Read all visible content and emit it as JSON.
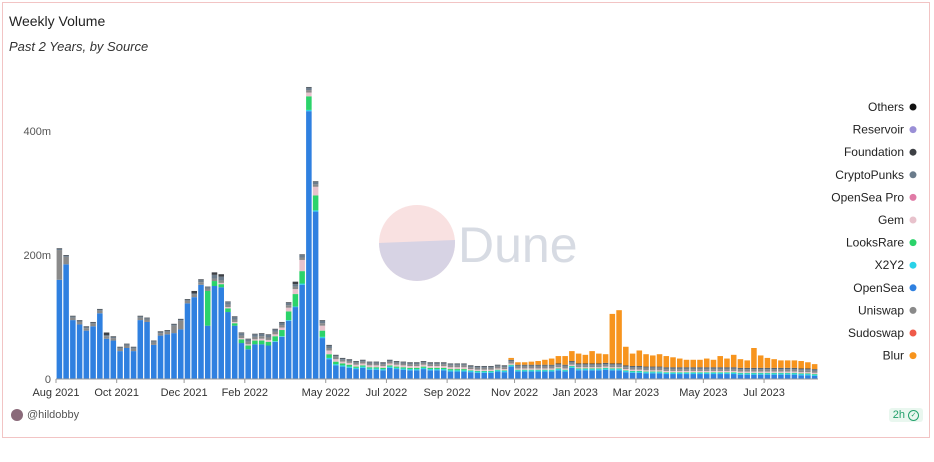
{
  "header": {
    "title": "Weekly Volume",
    "subtitle": "Past 2 Years, by Source"
  },
  "watermark": {
    "text": "Dune"
  },
  "footer": {
    "user": "@hildobby",
    "refresh": "2h"
  },
  "colors": {
    "Others": "#111111",
    "Reservoir": "#9a8fd6",
    "Foundation": "#3d4045",
    "CryptoPunks": "#6b7c8c",
    "OpenSea Pro": "#e07aa6",
    "Gem": "#e8c2cc",
    "LooksRare": "#2bd36a",
    "X2Y2": "#2ad2e8",
    "OpenSea": "#2f80e0",
    "Uniswap": "#8a8a8a",
    "Sudoswap": "#ef5a4a",
    "Blur": "#f7941d"
  },
  "chart_data": {
    "type": "bar",
    "stacked": true,
    "title": "Weekly Volume",
    "subtitle": "Past 2 Years, by Source",
    "ylim": [
      0,
      500
    ],
    "y_ticks": [
      0,
      200,
      400
    ],
    "y_tick_labels": [
      "0",
      "200m",
      "400m"
    ],
    "x_tick_labels": [
      "Aug 2021",
      "Oct 2021",
      "Dec 2021",
      "Feb 2022",
      "May 2022",
      "Jul 2022",
      "Sep 2022",
      "Nov 2022",
      "Jan 2023",
      "Mar 2023",
      "May 2023",
      "Jul 2023"
    ],
    "x_tick_weeks": [
      0,
      9,
      19,
      28,
      40,
      49,
      58,
      68,
      77,
      86,
      96,
      105
    ],
    "legend_position": "right",
    "grid": false,
    "legend": [
      "Others",
      "Reservoir",
      "Foundation",
      "CryptoPunks",
      "OpenSea Pro",
      "Gem",
      "LooksRare",
      "X2Y2",
      "OpenSea",
      "Uniswap",
      "Sudoswap",
      "Blur"
    ],
    "series": [
      {
        "name": "OpenSea",
        "values": [
          160,
          185,
          95,
          88,
          78,
          85,
          106,
          65,
          62,
          45,
          50,
          45,
          95,
          92,
          55,
          70,
          72,
          74,
          80,
          122,
          132,
          152,
          86,
          150,
          148,
          108,
          86,
          58,
          48,
          56,
          56,
          54,
          60,
          68,
          94,
          116,
          152,
          432,
          270,
          66,
          32,
          22,
          20,
          18,
          16,
          18,
          15,
          15,
          14,
          18,
          16,
          15,
          14,
          14,
          16,
          14,
          14,
          14,
          12,
          12,
          12,
          11,
          10,
          10,
          10,
          12,
          11,
          20,
          12,
          12,
          12,
          12,
          12,
          12,
          14,
          12,
          18,
          14,
          14,
          14,
          14,
          15,
          14,
          14,
          11,
          10,
          10,
          9,
          9,
          9,
          8,
          8,
          8,
          8,
          8,
          8,
          8,
          8,
          8,
          8,
          8,
          7,
          7,
          7,
          7,
          7,
          7,
          7,
          7,
          7,
          6,
          6,
          5
        ]
      },
      {
        "name": "X2Y2",
        "values": [
          0,
          0,
          0,
          0,
          0,
          0,
          0,
          0,
          0,
          0,
          0,
          0,
          0,
          0,
          0,
          0,
          0,
          0,
          0,
          0,
          0,
          0,
          0,
          0,
          0,
          0,
          0,
          0,
          0,
          0,
          0,
          0,
          1,
          1,
          1,
          1,
          2,
          2,
          2,
          2,
          2,
          2,
          2,
          2,
          2,
          2,
          2,
          2,
          2,
          2,
          2,
          2,
          2,
          2,
          2,
          2,
          2,
          2,
          2,
          2,
          2,
          2,
          2,
          2,
          2,
          2,
          2,
          2,
          2,
          2,
          2,
          2,
          2,
          2,
          2,
          2,
          2,
          2,
          2,
          2,
          2,
          2,
          2,
          2,
          2,
          2,
          2,
          2,
          2,
          2,
          2,
          2,
          2,
          2,
          2,
          2,
          2,
          2,
          2,
          2,
          2,
          2,
          2,
          2,
          2,
          2,
          2,
          2,
          2,
          2,
          2,
          2,
          2
        ]
      },
      {
        "name": "LooksRare",
        "values": [
          0,
          0,
          0,
          0,
          0,
          0,
          0,
          0,
          0,
          0,
          0,
          0,
          0,
          0,
          0,
          0,
          0,
          0,
          0,
          0,
          0,
          0,
          56,
          8,
          5,
          6,
          4,
          6,
          6,
          6,
          6,
          6,
          8,
          10,
          14,
          20,
          20,
          22,
          24,
          10,
          6,
          4,
          3,
          3,
          2,
          2,
          2,
          2,
          2,
          2,
          2,
          2,
          2,
          2,
          2,
          2,
          2,
          2,
          2,
          2,
          2,
          1,
          1,
          1,
          1,
          1,
          1,
          1,
          1,
          1,
          1,
          1,
          1,
          1,
          1,
          1,
          1,
          1,
          1,
          1,
          1,
          1,
          1,
          1,
          1,
          1,
          1,
          1,
          1,
          1,
          1,
          1,
          1,
          1,
          1,
          1,
          1,
          1,
          1,
          1,
          1,
          1,
          1,
          1,
          1,
          1,
          1,
          1,
          1,
          1,
          1,
          1,
          1
        ]
      },
      {
        "name": "Gem",
        "values": [
          0,
          0,
          0,
          0,
          0,
          0,
          0,
          0,
          0,
          0,
          0,
          0,
          0,
          0,
          0,
          0,
          0,
          0,
          0,
          0,
          0,
          0,
          0,
          0,
          2,
          2,
          2,
          2,
          2,
          2,
          3,
          3,
          3,
          4,
          6,
          8,
          18,
          6,
          14,
          8,
          6,
          4,
          3,
          3,
          3,
          3,
          3,
          3,
          3,
          3,
          3,
          3,
          3,
          3,
          3,
          3,
          3,
          3,
          3,
          3,
          3,
          2,
          2,
          2,
          2,
          2,
          2,
          2,
          2,
          2,
          2,
          2,
          2,
          2,
          2,
          2,
          2,
          2,
          2,
          2,
          2,
          2,
          2,
          2,
          2,
          2,
          2,
          2,
          2,
          2,
          2,
          2,
          2,
          2,
          2,
          2,
          2,
          2,
          2,
          2,
          2,
          2,
          2,
          2,
          2,
          2,
          2,
          2,
          2,
          2,
          2,
          2,
          2
        ]
      },
      {
        "name": "Uniswap",
        "values": [
          48,
          12,
          4,
          4,
          4,
          4,
          4,
          4,
          4,
          4,
          4,
          4,
          4,
          4,
          4,
          4,
          4,
          12,
          14,
          4,
          4,
          4,
          4,
          4,
          4,
          4,
          4,
          4,
          4,
          4,
          4,
          4,
          4,
          4,
          4,
          4,
          4,
          4,
          4,
          4,
          4,
          4,
          3,
          3,
          3,
          3,
          3,
          3,
          3,
          3,
          3,
          3,
          3,
          3,
          3,
          3,
          3,
          3,
          3,
          3,
          3,
          3,
          3,
          3,
          3,
          3,
          3,
          3,
          3,
          3,
          3,
          3,
          3,
          3,
          3,
          3,
          3,
          3,
          3,
          3,
          3,
          3,
          3,
          3,
          3,
          3,
          3,
          3,
          3,
          3,
          3,
          3,
          3,
          3,
          3,
          3,
          3,
          3,
          3,
          3,
          3,
          3,
          3,
          3,
          3,
          3,
          3,
          3,
          3,
          3,
          3,
          3,
          3
        ]
      },
      {
        "name": "CryptoPunks",
        "values": [
          2,
          2,
          2,
          2,
          2,
          2,
          2,
          2,
          2,
          2,
          2,
          2,
          2,
          2,
          2,
          2,
          2,
          2,
          2,
          2,
          2,
          4,
          2,
          6,
          6,
          4,
          4,
          4,
          4,
          4,
          4,
          4,
          4,
          4,
          4,
          4,
          4,
          4,
          4,
          4,
          4,
          2,
          2,
          2,
          2,
          2,
          2,
          2,
          2,
          2,
          2,
          2,
          2,
          2,
          2,
          2,
          2,
          2,
          2,
          2,
          2,
          2,
          2,
          2,
          2,
          2,
          2,
          2,
          2,
          2,
          2,
          2,
          2,
          2,
          2,
          2,
          2,
          2,
          2,
          2,
          2,
          2,
          2,
          2,
          2,
          2,
          2,
          2,
          2,
          2,
          2,
          2,
          2,
          2,
          2,
          2,
          2,
          2,
          2,
          2,
          2,
          2,
          2,
          2,
          2,
          2,
          2,
          2,
          2,
          2,
          2,
          2,
          2
        ]
      },
      {
        "name": "Foundation",
        "values": [
          1,
          1,
          1,
          1,
          1,
          1,
          1,
          4,
          1,
          1,
          1,
          1,
          1,
          1,
          1,
          1,
          1,
          1,
          1,
          1,
          4,
          1,
          1,
          4,
          4,
          1,
          1,
          1,
          1,
          1,
          1,
          1,
          1,
          1,
          1,
          4,
          1,
          1,
          1,
          1,
          1,
          1,
          1,
          1,
          1,
          1,
          1,
          1,
          1,
          1,
          1,
          1,
          1,
          1,
          1,
          1,
          1,
          1,
          1,
          1,
          1,
          1,
          1,
          1,
          1,
          1,
          1,
          1,
          1,
          1,
          1,
          1,
          1,
          1,
          1,
          1,
          1,
          1,
          1,
          1,
          1,
          1,
          1,
          1,
          1,
          1,
          1,
          1,
          1,
          1,
          1,
          1,
          1,
          1,
          1,
          1,
          1,
          1,
          1,
          1,
          1,
          1,
          1,
          1,
          1,
          1,
          1,
          1,
          1,
          1,
          1,
          1,
          1
        ]
      },
      {
        "name": "Blur",
        "values": [
          0,
          0,
          0,
          0,
          0,
          0,
          0,
          0,
          0,
          0,
          0,
          0,
          0,
          0,
          0,
          0,
          0,
          0,
          0,
          0,
          0,
          0,
          0,
          0,
          0,
          0,
          0,
          0,
          0,
          0,
          0,
          0,
          0,
          0,
          0,
          0,
          0,
          0,
          0,
          0,
          0,
          0,
          0,
          0,
          0,
          0,
          0,
          0,
          0,
          0,
          0,
          0,
          0,
          0,
          0,
          0,
          0,
          0,
          0,
          0,
          0,
          0,
          0,
          0,
          0,
          0,
          0,
          3,
          4,
          4,
          5,
          6,
          8,
          10,
          12,
          14,
          16,
          16,
          14,
          20,
          16,
          14,
          80,
          86,
          30,
          20,
          25,
          20,
          18,
          20,
          18,
          16,
          14,
          12,
          12,
          12,
          14,
          12,
          18,
          14,
          20,
          14,
          12,
          32,
          20,
          16,
          14,
          12,
          12,
          12,
          12,
          10,
          8
        ]
      }
    ]
  }
}
